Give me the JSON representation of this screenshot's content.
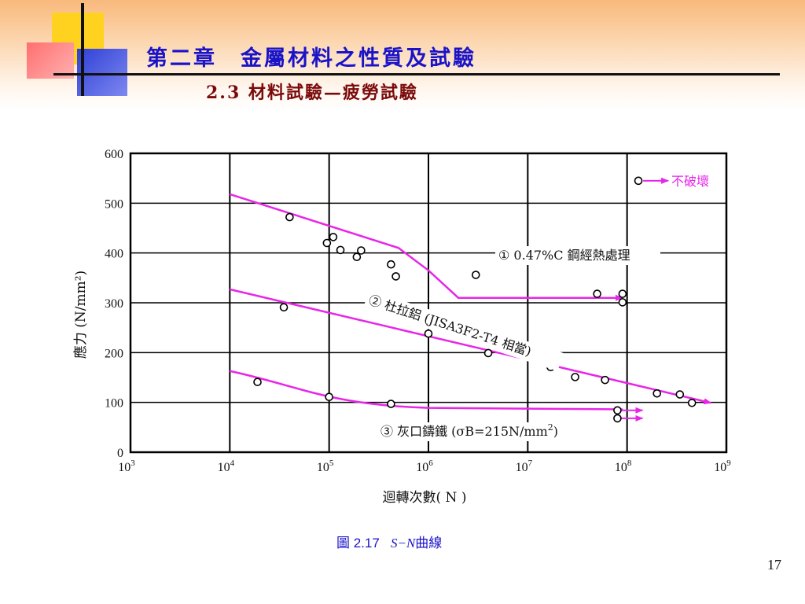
{
  "slide": {
    "chapter_title": "第二章　金屬材料之性質及試驗",
    "section_title": "2.3  材料試驗—疲勞試驗",
    "caption_label": "圖 2.17",
    "caption_sn": "S−N",
    "caption_text": "曲線",
    "page_number": "17"
  },
  "chart_data": {
    "type": "scatter",
    "xlabel": "迴轉次數( N )",
    "ylabel": "應力 (N/mm²)",
    "xscale": "log",
    "xlim": [
      1000,
      1000000000
    ],
    "ylim": [
      0,
      600
    ],
    "grid": true,
    "x_tick_labels": [
      {
        "base": "10",
        "exp": "3"
      },
      {
        "base": "10",
        "exp": "4"
      },
      {
        "base": "10",
        "exp": "5"
      },
      {
        "base": "10",
        "exp": "6"
      },
      {
        "base": "10",
        "exp": "7"
      },
      {
        "base": "10",
        "exp": "8"
      },
      {
        "base": "10",
        "exp": "9"
      }
    ],
    "y_tick_labels": [
      "0",
      "100",
      "200",
      "300",
      "400",
      "500",
      "600"
    ],
    "legend_note": "不破壞",
    "series": [
      {
        "name": "① 0.47%C 鋼經熱處理",
        "points": [
          [
            40000,
            472
          ],
          [
            95000,
            420
          ],
          [
            110000,
            432
          ],
          [
            130000,
            406
          ],
          [
            190000,
            392
          ],
          [
            210000,
            405
          ],
          [
            420000,
            377
          ],
          [
            470000,
            353
          ],
          [
            3000000,
            356
          ],
          [
            50000000,
            318
          ],
          [
            90000000,
            318
          ],
          [
            90000000,
            301
          ],
          [
            130000000,
            545
          ]
        ],
        "curve": [
          [
            10000,
            518
          ],
          [
            500000,
            410
          ],
          [
            1000000,
            365
          ],
          [
            2000000,
            310
          ],
          [
            90000000,
            310
          ]
        ]
      },
      {
        "name": "② 杜拉鋁 (JISA3F2-T4 相當)",
        "points": [
          [
            35000,
            291
          ],
          [
            1000000,
            238
          ],
          [
            4000000,
            199
          ],
          [
            17000000,
            171
          ],
          [
            30000000,
            151
          ],
          [
            60000000,
            145
          ],
          [
            200000000,
            118
          ],
          [
            340000000,
            116
          ],
          [
            450000000,
            99
          ]
        ],
        "curve": [
          [
            10000,
            327
          ],
          [
            700000000,
            99
          ]
        ]
      },
      {
        "name": "③ 灰口鑄鐵 (σB=215N/mm²)",
        "points": [
          [
            19000,
            141
          ],
          [
            100000,
            111
          ],
          [
            420000,
            97
          ],
          [
            80000000,
            84
          ],
          [
            80000000,
            68
          ]
        ],
        "curve": [
          [
            10000,
            163
          ],
          [
            30000000,
            113
          ],
          [
            100000,
            95
          ],
          [
            1000000,
            89
          ],
          [
            90000000,
            86
          ]
        ]
      }
    ]
  }
}
